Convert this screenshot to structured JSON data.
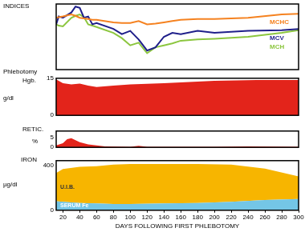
{
  "chart_data": [
    {
      "type": "line",
      "title": "INDICES",
      "legend": "right",
      "grid": false,
      "tick_labels": false,
      "xlim": [
        12,
        300
      ],
      "ylim": [
        0,
        100
      ],
      "x": [
        12,
        15,
        20,
        30,
        35,
        40,
        45,
        50,
        55,
        60,
        80,
        90,
        100,
        110,
        120,
        130,
        140,
        150,
        160,
        180,
        200,
        240,
        280,
        300
      ],
      "series": [
        {
          "name": "MCHC",
          "color": "#f58220",
          "values": [
            79,
            80,
            81,
            84,
            82,
            79,
            78,
            77,
            76,
            76,
            72,
            71,
            71,
            74,
            69,
            70,
            72,
            74,
            76,
            77,
            77,
            79,
            84,
            85
          ]
        },
        {
          "name": "MCV",
          "color": "#1f1f8a",
          "values": [
            69,
            81,
            79,
            87,
            96,
            94,
            79,
            81,
            69,
            71,
            62,
            54,
            59,
            46,
            29,
            34,
            50,
            56,
            54,
            59,
            56,
            59,
            60,
            62
          ]
        },
        {
          "name": "MCH",
          "color": "#8cc63f",
          "values": [
            69,
            67,
            66,
            79,
            82,
            84,
            80,
            69,
            67,
            65,
            56,
            48,
            37,
            41,
            25,
            34,
            37,
            40,
            44,
            46,
            47,
            50,
            56,
            60
          ]
        }
      ]
    },
    {
      "type": "area",
      "title": "Hgb.",
      "annotation": "Phlebotomy",
      "ylabel": "g/dl",
      "grid": false,
      "tick_labels": "y",
      "xlim": [
        12,
        300
      ],
      "ylim": [
        0,
        15
      ],
      "yticks": [
        0,
        15
      ],
      "color": "#e3241b",
      "x": [
        12,
        20,
        30,
        40,
        50,
        60,
        80,
        100,
        140,
        200,
        250,
        300
      ],
      "values": [
        14.5,
        13,
        12.5,
        12.8,
        12,
        11.5,
        12,
        12.5,
        13,
        14,
        14.3,
        14.3
      ]
    },
    {
      "type": "area",
      "title": "RETIC.",
      "ylabel": "%",
      "grid": false,
      "tick_labels": "y",
      "xlim": [
        12,
        300
      ],
      "ylim": [
        0,
        8
      ],
      "yticks": [
        0,
        5
      ],
      "color": "#e3241b",
      "x": [
        12,
        20,
        25,
        30,
        35,
        40,
        50,
        60,
        70,
        100,
        110,
        120,
        200,
        240,
        300
      ],
      "values": [
        1,
        2,
        4,
        4.5,
        3.5,
        2.5,
        1.5,
        1,
        0.5,
        0.3,
        0.8,
        0.3,
        0.3,
        0.5,
        0.3
      ]
    },
    {
      "type": "area",
      "title": "IRON",
      "ylabel": "µg/dl",
      "xlabel": "DAYS FOLLOWING FIRST PHLEBOTOMY",
      "grid": false,
      "stacked": true,
      "xlim": [
        12,
        300
      ],
      "xticks": [
        20,
        40,
        60,
        80,
        100,
        120,
        140,
        160,
        180,
        200,
        220,
        240,
        260,
        280,
        300
      ],
      "ylim": [
        0,
        440
      ],
      "yticks": [
        0,
        400
      ],
      "x": [
        12,
        20,
        40,
        60,
        80,
        100,
        140,
        180,
        220,
        260,
        300
      ],
      "series": [
        {
          "name": "SERUM Fe",
          "color": "#74c6e6",
          "values": [
            80,
            75,
            65,
            60,
            55,
            55,
            60,
            65,
            75,
            90,
            100
          ]
        },
        {
          "name": "U.I.B.",
          "color": "#f7b500",
          "values": [
            250,
            290,
            320,
            330,
            350,
            355,
            350,
            345,
            330,
            280,
            200
          ]
        }
      ]
    }
  ]
}
